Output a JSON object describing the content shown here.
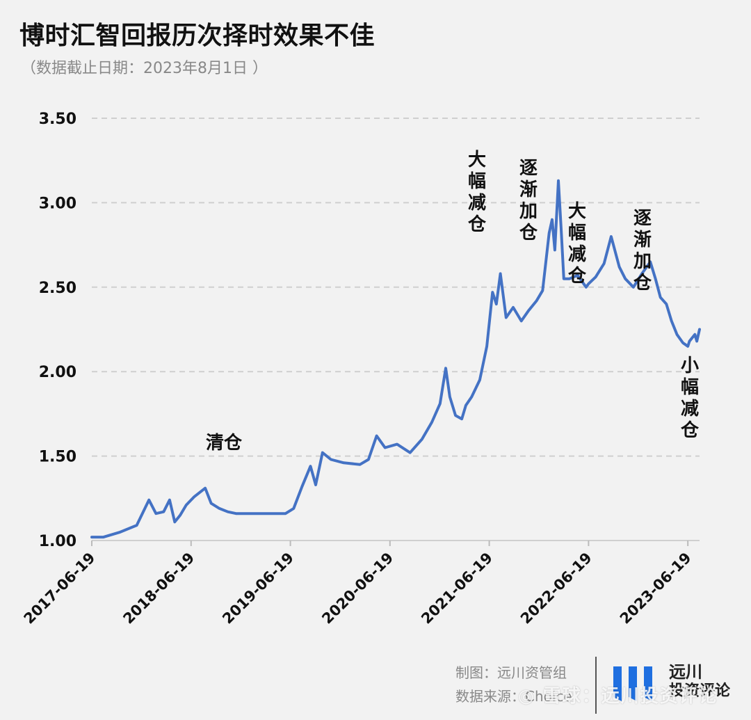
{
  "header": {
    "title": "博时汇智回报历次择时效果不佳",
    "subtitle": "（数据截止日期：2023年8月1日 ）"
  },
  "chart_data": {
    "type": "line",
    "title": "博时汇智回报历次择时效果不佳",
    "xlabel": "",
    "ylabel": "",
    "ylim": [
      1.0,
      3.5
    ],
    "yticks": [
      1.0,
      1.5,
      2.0,
      2.5,
      3.0,
      3.5
    ],
    "ytick_labels": [
      "1.00",
      "1.50",
      "2.00",
      "2.50",
      "3.00",
      "3.50"
    ],
    "xticks": [
      "2017-06-19",
      "2018-06-19",
      "2019-06-19",
      "2020-06-19",
      "2021-06-19",
      "2022-06-19",
      "2023-06-19"
    ],
    "xlim": [
      "2017-06-19",
      "2023-08-01"
    ],
    "grid": "horizontal dashed",
    "line_color": "#4472c4",
    "series": [
      {
        "name": "",
        "points": [
          [
            "2017-06-19",
            1.02
          ],
          [
            "2017-08-01",
            1.02
          ],
          [
            "2017-10-01",
            1.05
          ],
          [
            "2017-12-01",
            1.09
          ],
          [
            "2018-01-15",
            1.24
          ],
          [
            "2018-02-10",
            1.16
          ],
          [
            "2018-03-10",
            1.17
          ],
          [
            "2018-04-01",
            1.24
          ],
          [
            "2018-04-20",
            1.11
          ],
          [
            "2018-05-10",
            1.15
          ],
          [
            "2018-06-01",
            1.21
          ],
          [
            "2018-07-01",
            1.26
          ],
          [
            "2018-08-10",
            1.31
          ],
          [
            "2018-09-01",
            1.22
          ],
          [
            "2018-10-01",
            1.19
          ],
          [
            "2018-11-01",
            1.17
          ],
          [
            "2018-12-01",
            1.16
          ],
          [
            "2019-02-01",
            1.16
          ],
          [
            "2019-04-01",
            1.16
          ],
          [
            "2019-06-01",
            1.16
          ],
          [
            "2019-07-01",
            1.19
          ],
          [
            "2019-08-01",
            1.32
          ],
          [
            "2019-09-01",
            1.44
          ],
          [
            "2019-09-20",
            1.33
          ],
          [
            "2019-10-15",
            1.52
          ],
          [
            "2019-11-15",
            1.48
          ],
          [
            "2020-01-01",
            1.46
          ],
          [
            "2020-03-01",
            1.45
          ],
          [
            "2020-04-01",
            1.48
          ],
          [
            "2020-05-01",
            1.62
          ],
          [
            "2020-06-01",
            1.55
          ],
          [
            "2020-07-15",
            1.57
          ],
          [
            "2020-09-01",
            1.52
          ],
          [
            "2020-10-15",
            1.6
          ],
          [
            "2020-11-20",
            1.7
          ],
          [
            "2020-12-20",
            1.81
          ],
          [
            "2021-01-10",
            2.02
          ],
          [
            "2021-01-25",
            1.85
          ],
          [
            "2021-02-15",
            1.74
          ],
          [
            "2021-03-10",
            1.72
          ],
          [
            "2021-03-25",
            1.8
          ],
          [
            "2021-04-15",
            1.85
          ],
          [
            "2021-05-15",
            1.95
          ],
          [
            "2021-06-10",
            2.15
          ],
          [
            "2021-07-01",
            2.47
          ],
          [
            "2021-07-15",
            2.4
          ],
          [
            "2021-07-30",
            2.58
          ],
          [
            "2021-08-20",
            2.32
          ],
          [
            "2021-09-15",
            2.38
          ],
          [
            "2021-10-15",
            2.3
          ],
          [
            "2021-11-10",
            2.36
          ],
          [
            "2021-12-10",
            2.42
          ],
          [
            "2022-01-01",
            2.48
          ],
          [
            "2022-01-25",
            2.82
          ],
          [
            "2022-02-05",
            2.9
          ],
          [
            "2022-02-15",
            2.72
          ],
          [
            "2022-02-28",
            3.13
          ],
          [
            "2022-03-10",
            2.85
          ],
          [
            "2022-03-20",
            2.55
          ],
          [
            "2022-04-10",
            2.55
          ],
          [
            "2022-05-10",
            2.57
          ],
          [
            "2022-06-10",
            2.5
          ],
          [
            "2022-06-19",
            2.52
          ],
          [
            "2022-07-15",
            2.56
          ],
          [
            "2022-08-15",
            2.64
          ],
          [
            "2022-09-10",
            2.8
          ],
          [
            "2022-10-10",
            2.62
          ],
          [
            "2022-11-01",
            2.55
          ],
          [
            "2022-12-01",
            2.5
          ],
          [
            "2023-01-01",
            2.58
          ],
          [
            "2023-02-01",
            2.65
          ],
          [
            "2023-02-20",
            2.55
          ],
          [
            "2023-03-10",
            2.44
          ],
          [
            "2023-04-01",
            2.4
          ],
          [
            "2023-04-20",
            2.3
          ],
          [
            "2023-05-10",
            2.22
          ],
          [
            "2023-06-01",
            2.17
          ],
          [
            "2023-06-19",
            2.15
          ],
          [
            "2023-06-25",
            2.18
          ],
          [
            "2023-07-05",
            2.2
          ],
          [
            "2023-07-15",
            2.22
          ],
          [
            "2023-07-22",
            2.18
          ],
          [
            "2023-08-01",
            2.25
          ]
        ]
      }
    ],
    "annotations": [
      {
        "text": "清仓",
        "near": "2018-11-20"
      },
      {
        "text": "大幅减仓",
        "near": "2021-01-10"
      },
      {
        "text": "逐渐加仓",
        "near": "2021-06-01"
      },
      {
        "text": "大幅减仓",
        "near": "2021-11-01"
      },
      {
        "text": "逐渐加仓",
        "near": "2022-05-10"
      },
      {
        "text": "小幅减仓",
        "near": "2023-05-15"
      }
    ]
  },
  "footer": {
    "line1": "制图：远川资管组",
    "line2": "数据来源：Choice",
    "brand_line1": "远川",
    "brand_line2": "投资评论",
    "watermark": "◎ 雪球：远川投资评论"
  },
  "colors": {
    "line": "#4472c4",
    "grid": "#cfcfcf",
    "logo_blue": "#1f6fe0"
  }
}
